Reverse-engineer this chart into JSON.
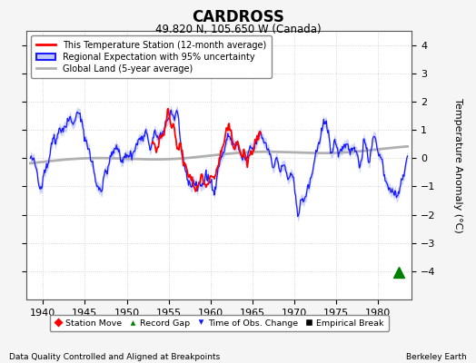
{
  "title": "CARDROSS",
  "subtitle": "49.820 N, 105.650 W (Canada)",
  "xlabel_bottom": "Data Quality Controlled and Aligned at Breakpoints",
  "xlabel_right": "Berkeley Earth",
  "ylabel": "Temperature Anomaly (°C)",
  "xlim": [
    1938,
    1984
  ],
  "ylim": [
    -5,
    4.5
  ],
  "yticks": [
    -4,
    -3,
    -2,
    -1,
    0,
    1,
    2,
    3,
    4
  ],
  "xticks": [
    1940,
    1945,
    1950,
    1955,
    1960,
    1965,
    1970,
    1975,
    1980
  ],
  "bg_color": "#f5f5f5",
  "plot_bg_color": "#ffffff",
  "grid_color": "#cccccc",
  "station_color": "red",
  "regional_color": "#1a1aff",
  "regional_shade_color": "#c0c8ff",
  "global_color": "#b0b0b0",
  "legend_station": "This Temperature Station (12-month average)",
  "legend_regional": "Regional Expectation with 95% uncertainty",
  "legend_global": "Global Land (5-year average)",
  "marker_station_move_label": "Station Move",
  "marker_record_gap_label": "Record Gap",
  "marker_obs_change_label": "Time of Obs. Change",
  "marker_empirical_label": "Empirical Break",
  "record_gap_x": 1982.5,
  "record_gap_y": -4.05,
  "seed": 42
}
